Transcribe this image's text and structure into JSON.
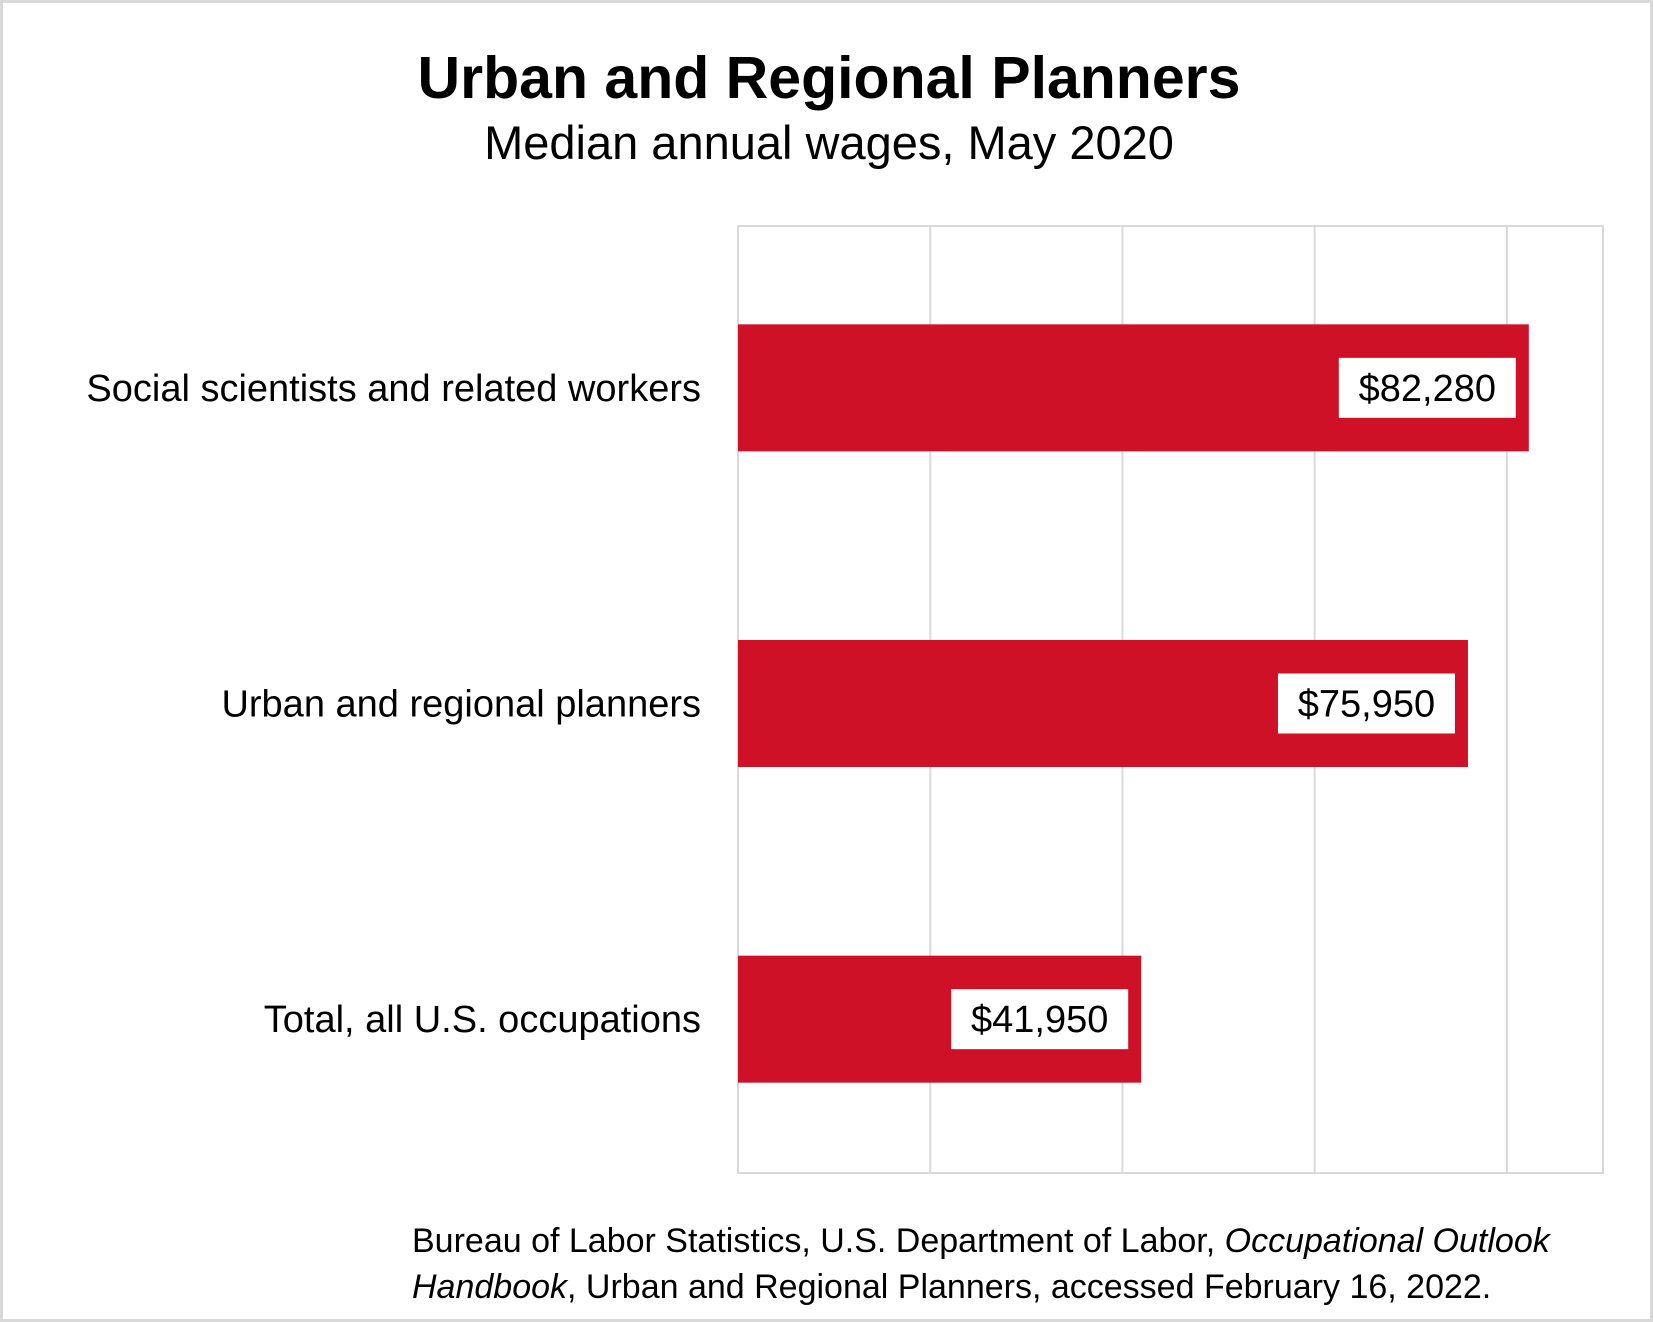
{
  "chart_data": {
    "type": "bar",
    "orientation": "horizontal",
    "title": "Urban and Regional Planners",
    "subtitle": "Median annual wages, May 2020",
    "categories": [
      "Social scientists and related workers",
      "Urban and regional planners",
      "Total, all U.S. occupations"
    ],
    "values": [
      82280,
      75950,
      41950
    ],
    "data_labels": [
      "$82,280",
      "$75,950",
      "$41,950"
    ],
    "xlim": [
      0,
      90000
    ],
    "grid_step": 20000,
    "grid": true,
    "bar_color": "#CE1126",
    "source_line1_plain": "Bureau of Labor Statistics, U.S. Department of Labor, ",
    "source_line1_italic": "Occupational Outlook",
    "source_line2_italic": "Handbook",
    "source_line2_plain": ", Urban and Regional Planners, accessed February 16, 2022."
  }
}
